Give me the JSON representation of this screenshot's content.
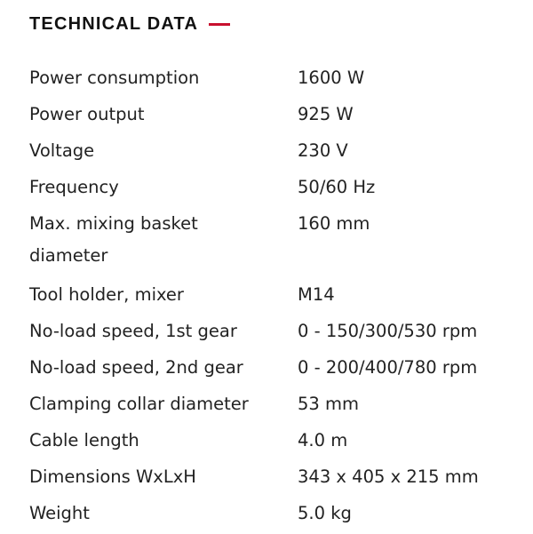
{
  "title": "TECHNICAL DATA",
  "accent_color": "#c8102e",
  "rows": [
    {
      "label": "Power consumption",
      "value": "1600 W"
    },
    {
      "label": "Power output",
      "value": "925 W"
    },
    {
      "label": "Voltage",
      "value": "230 V"
    },
    {
      "label": "Frequency",
      "value": "50/60 Hz"
    },
    {
      "label": "Max. mixing basket diameter",
      "value": "160 mm"
    },
    {
      "label": "Tool holder, mixer",
      "value": "M14"
    },
    {
      "label": "No-load speed, 1st gear",
      "value": "0 - 150/300/530 rpm"
    },
    {
      "label": "No-load speed, 2nd gear",
      "value": "0 - 200/400/780 rpm"
    },
    {
      "label": "Clamping collar diameter",
      "value": "53 mm"
    },
    {
      "label": "Cable length",
      "value": "4.0 m"
    },
    {
      "label": "Dimensions WxLxH",
      "value": "343 x 405 x 215 mm"
    },
    {
      "label": "Weight",
      "value": "5.0 kg"
    }
  ]
}
